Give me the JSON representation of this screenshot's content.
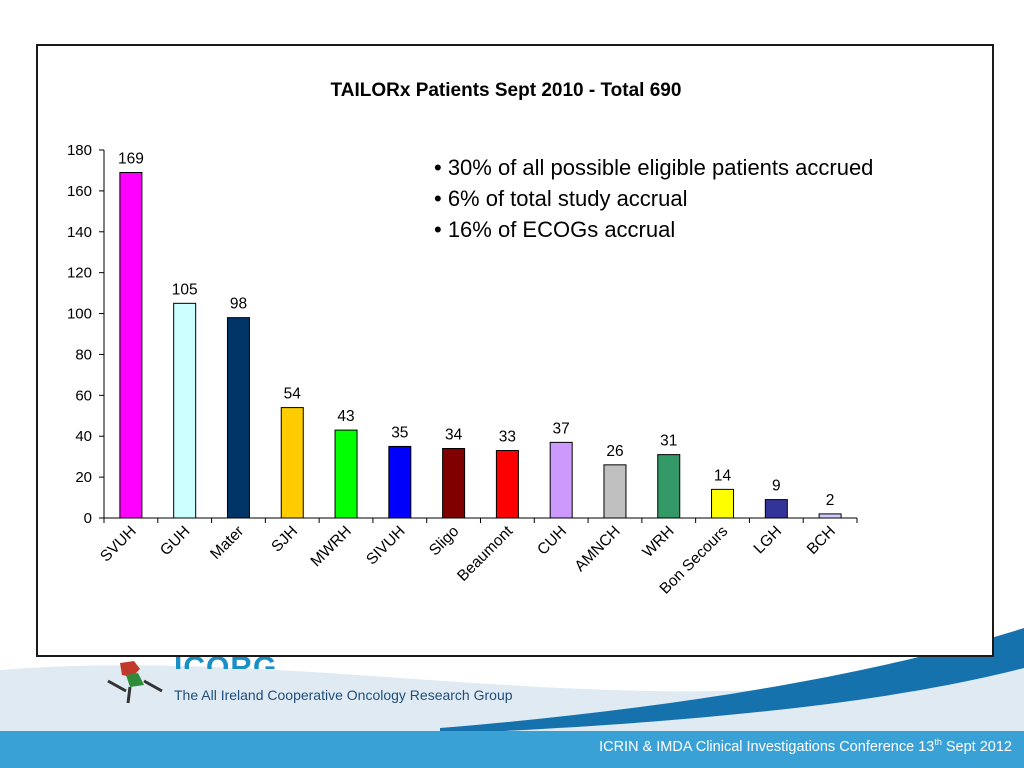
{
  "colors": {
    "band_dark": "#1672ac",
    "band_light": "#3aa1d6",
    "band_bg": "#dfeaf3",
    "logo_blue": "#1a8fc6",
    "logo_navy": "#1f4e79"
  },
  "chart_data": {
    "type": "bar",
    "title": "TAILORx Patients Sept 2010 - Total 690",
    "xlabel": "",
    "ylabel": "",
    "ylim": [
      0,
      180
    ],
    "yticks": [
      0,
      20,
      40,
      60,
      80,
      100,
      120,
      140,
      160,
      180
    ],
    "categories": [
      "SVUH",
      "GUH",
      "Mater",
      "SJH",
      "MWRH",
      "SIVUH",
      "Sligo",
      "Beaumont",
      "CUH",
      "AMNCH",
      "WRH",
      "Bon Secours",
      "LGH",
      "BCH"
    ],
    "values": [
      169,
      105,
      98,
      54,
      43,
      35,
      34,
      33,
      37,
      26,
      31,
      14,
      9,
      2
    ],
    "colors": [
      "#ff00ff",
      "#ccffff",
      "#003366",
      "#ffcc00",
      "#00ff00",
      "#0000ff",
      "#800000",
      "#ff0000",
      "#cc99ff",
      "#c0c0c0",
      "#339966",
      "#ffff00",
      "#333399",
      "#ccccff"
    ],
    "grid": false,
    "legend": "none",
    "data_labels": true
  },
  "notes": [
    "• 30% of all possible eligible patients accrued",
    "• 6% of total study accrual",
    "• 16% of ECOGs accrual"
  ],
  "logo": {
    "name": "ICORG",
    "subtitle": "The All Ireland Cooperative Oncology Research Group"
  },
  "footer": {
    "text_pre": "ICRIN & IMDA Clinical Investigations Conference  13",
    "text_sup": "th",
    "text_post": " Sept 2012"
  }
}
